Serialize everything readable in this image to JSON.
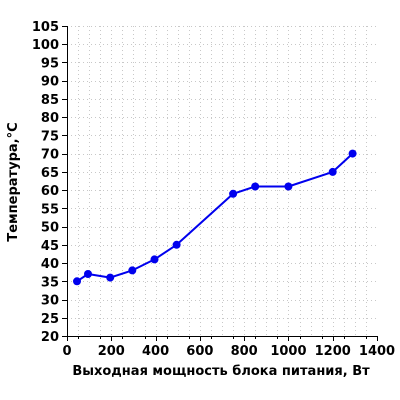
{
  "chart_data": {
    "type": "line",
    "xlabel": "Выходная мощность блока питания, Вт",
    "ylabel": "Температура,°С",
    "xlim": [
      0,
      1400
    ],
    "ylim": [
      20,
      105
    ],
    "xticks": [
      0,
      200,
      400,
      600,
      800,
      1000,
      1200,
      1400
    ],
    "yticks": [
      20,
      25,
      30,
      35,
      40,
      45,
      50,
      55,
      60,
      65,
      70,
      75,
      80,
      85,
      90,
      95,
      100,
      105
    ],
    "grid": true,
    "series": [
      {
        "color": "#0000ee",
        "x": [
          45,
          95,
          195,
          295,
          395,
          495,
          750,
          850,
          1000,
          1200,
          1290
        ],
        "y": [
          35,
          37,
          36,
          38,
          41,
          45,
          59,
          61,
          61,
          65,
          70
        ]
      }
    ]
  }
}
